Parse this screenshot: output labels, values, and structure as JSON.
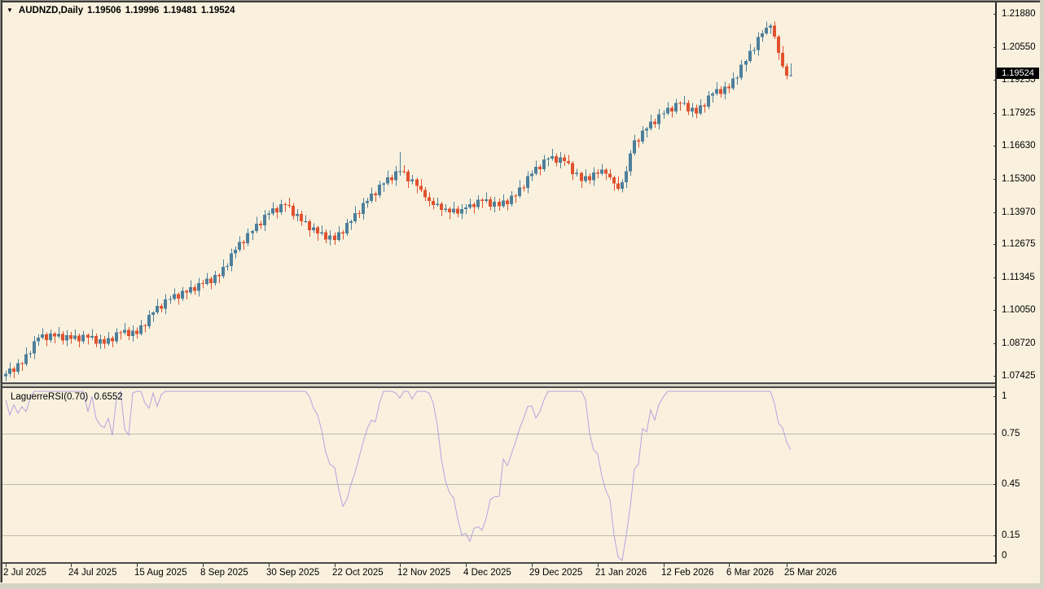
{
  "quote": {
    "symbol_period": "AUDNZD,Daily",
    "open": "1.19506",
    "high": "1.19996",
    "low": "1.19481",
    "close": "1.19524"
  },
  "indicator": {
    "label": "LaguerreRSI(0.70)",
    "value": "0.6552"
  },
  "price_axis": {
    "tick_labels": [
      "1.21880",
      "1.20550",
      "1.19255",
      "1.17925",
      "1.16630",
      "1.15300",
      "1.13970",
      "1.12675",
      "1.11345",
      "1.10050",
      "1.08720",
      "1.07425"
    ],
    "current": "1.19524"
  },
  "rsi_axis": {
    "tick_labels": [
      "1",
      "0.75",
      "0.45",
      "0.15",
      "0"
    ],
    "tick_values": [
      1,
      0.75,
      0.45,
      0.15,
      0
    ]
  },
  "time_axis": {
    "labels": [
      "2 Jul 2025",
      "24 Jul 2025",
      "15 Aug 2025",
      "8 Sep 2025",
      "30 Sep 2025",
      "22 Oct 2025",
      "12 Nov 2025",
      "4 Dec 2025",
      "29 Dec 2025",
      "21 Jan 2026",
      "12 Feb 2026",
      "6 Mar 2026",
      "25 Mar 2026"
    ],
    "indices": [
      0,
      16,
      32,
      48,
      64,
      80,
      96,
      112,
      128,
      144,
      160,
      176,
      190
    ]
  },
  "colors": {
    "background": "#f9f1de",
    "bull": "#4d7f9b",
    "bear": "#e1512d",
    "rsi_line": "#b7a1df",
    "grid": "#bdb9ae",
    "axis_text": "#000000",
    "badge_bg": "#000000",
    "badge_fg": "#ffffff"
  },
  "chart_data": [
    {
      "type": "candlestick",
      "title": "AUDNZD,Daily",
      "symbol": "AUDNZD",
      "timeframe": "Daily",
      "ylim": [
        1.07166,
        1.22432
      ],
      "grid": false,
      "y_tick_labels": [
        "1.21880",
        "1.20550",
        "1.19255",
        "1.17925",
        "1.16630",
        "1.15300",
        "1.13970",
        "1.12675",
        "1.11345",
        "1.10050",
        "1.08720",
        "1.07425"
      ],
      "x_labels": [
        "2 Jul 2025",
        "24 Jul 2025",
        "15 Aug 2025",
        "8 Sep 2025",
        "30 Sep 2025",
        "22 Oct 2025",
        "12 Nov 2025",
        "4 Dec 2025",
        "29 Dec 2025",
        "21 Jan 2026",
        "12 Feb 2026",
        "6 Mar 2026",
        "25 Mar 2026"
      ],
      "x_label_indices": [
        0,
        16,
        32,
        48,
        64,
        80,
        96,
        112,
        128,
        144,
        160,
        176,
        190
      ],
      "last_ohlc": [
        1.19506,
        1.19996,
        1.19481,
        1.19524
      ],
      "closes": [
        1.076,
        1.0782,
        1.0768,
        1.0802,
        1.08,
        1.0838,
        1.0841,
        1.0891,
        1.0905,
        1.0918,
        1.0896,
        1.0921,
        1.091,
        1.092,
        1.0893,
        1.0915,
        1.09,
        1.0913,
        1.0891,
        1.0916,
        1.0905,
        1.0911,
        1.0881,
        1.0898,
        1.088,
        1.0903,
        1.0891,
        1.0926,
        1.0925,
        1.0936,
        1.0911,
        1.0933,
        1.092,
        1.0953,
        1.0951,
        1.0996,
        1.1005,
        1.1031,
        1.1021,
        1.1058,
        1.106,
        1.1078,
        1.1061,
        1.1091,
        1.1085,
        1.1106,
        1.1091,
        1.1123,
        1.112,
        1.114,
        1.1123,
        1.1155,
        1.115,
        1.1188,
        1.1191,
        1.1241,
        1.1255,
        1.1286,
        1.1281,
        1.1323,
        1.133,
        1.136,
        1.1353,
        1.1395,
        1.14,
        1.1421,
        1.1406,
        1.1438,
        1.1435,
        1.1431,
        1.1391,
        1.1398,
        1.137,
        1.137,
        1.1333,
        1.1345,
        1.132,
        1.1326,
        1.1296,
        1.1313,
        1.1295,
        1.1326,
        1.1321,
        1.1363,
        1.137,
        1.1402,
        1.1398,
        1.1442,
        1.145,
        1.148,
        1.1473,
        1.1515,
        1.152,
        1.1545,
        1.1533,
        1.157,
        1.157,
        1.1567,
        1.1528,
        1.1537,
        1.151,
        1.1495,
        1.1465,
        1.145,
        1.1435,
        1.144,
        1.1415,
        1.142,
        1.1405,
        1.142,
        1.14,
        1.1418,
        1.1425,
        1.1437,
        1.1426,
        1.1456,
        1.145,
        1.1457,
        1.1428,
        1.1447,
        1.143,
        1.1452,
        1.1438,
        1.1472,
        1.147,
        1.1505,
        1.1503,
        1.155,
        1.156,
        1.1587,
        1.1578,
        1.1617,
        1.162,
        1.163,
        1.1603,
        1.1625,
        1.161,
        1.1602,
        1.1558,
        1.1562,
        1.153,
        1.155,
        1.1533,
        1.1565,
        1.156,
        1.1575,
        1.156,
        1.1545,
        1.152,
        1.15,
        1.1525,
        1.157,
        1.164,
        1.1692,
        1.1688,
        1.1732,
        1.174,
        1.1767,
        1.1758,
        1.1797,
        1.18,
        1.1822,
        1.1808,
        1.1842,
        1.184,
        1.1842,
        1.1808,
        1.1822,
        1.18,
        1.1832,
        1.1828,
        1.1872,
        1.188,
        1.1897,
        1.1878,
        1.1907,
        1.19,
        1.194,
        1.1943,
        1.1995,
        1.201,
        1.205,
        1.2053,
        1.2105,
        1.212,
        1.2143,
        1.215,
        1.2107,
        1.2042,
        1.1988,
        1.19506,
        1.19524
      ],
      "wick_high": [
        0.0013,
        0.0024,
        0.0008,
        0.0017,
        0.0006,
        0.0028,
        0.0011,
        0.002
      ],
      "wick_low": [
        0.0019,
        0.0007,
        0.0025,
        0.001,
        0.0028,
        0.0008,
        0.0015,
        0.0022
      ],
      "overrides": {
        "1": {
          "l": 1.0748
        },
        "96": {
          "h": 1.1645
        },
        "186": {
          "h": 1.2158
        },
        "191": {
          "o": 1.19506,
          "h": 1.19996,
          "l": 1.19481,
          "c": 1.19524
        }
      }
    },
    {
      "type": "line",
      "title": "LaguerreRSI(0.70)",
      "last_value": 0.6552,
      "ylim": [
        0,
        1
      ],
      "gridlines": [
        0.75,
        0.45,
        0.15
      ],
      "y_tick_labels": [
        "1",
        "0.75",
        "0.45",
        "0.15",
        "0"
      ],
      "values": [
        0.95,
        0.86,
        0.92,
        0.87,
        0.91,
        0.88,
        0.96,
        1.0,
        1.0,
        1.0,
        1.0,
        1.0,
        1.0,
        1.0,
        1.0,
        1.0,
        1.0,
        1.0,
        1.0,
        1.0,
        0.88,
        0.97,
        0.84,
        0.8,
        0.785,
        0.84,
        0.74,
        0.96,
        1.0,
        0.78,
        0.74,
        0.99,
        1.0,
        1.0,
        0.93,
        0.9,
        0.99,
        0.91,
        0.98,
        1.0,
        1.0,
        1.0,
        1.0,
        1.0,
        1.0,
        1.0,
        1.0,
        1.0,
        1.0,
        1.0,
        1.0,
        1.0,
        1.0,
        1.0,
        1.0,
        1.0,
        1.0,
        1.0,
        1.0,
        1.0,
        1.0,
        1.0,
        1.0,
        1.0,
        1.0,
        1.0,
        1.0,
        1.0,
        1.0,
        1.0,
        1.0,
        1.0,
        1.0,
        1.0,
        0.97,
        0.9,
        0.86,
        0.77,
        0.64,
        0.57,
        0.55,
        0.42,
        0.32,
        0.36,
        0.45,
        0.52,
        0.61,
        0.7,
        0.78,
        0.83,
        0.82,
        0.93,
        1.0,
        1.0,
        1.0,
        0.99,
        0.96,
        1.0,
        1.0,
        0.955,
        1.0,
        1.0,
        1.0,
        0.99,
        0.93,
        0.8,
        0.6,
        0.47,
        0.4,
        0.37,
        0.25,
        0.152,
        0.16,
        0.114,
        0.19,
        0.2,
        0.18,
        0.25,
        0.36,
        0.376,
        0.38,
        0.6,
        0.56,
        0.63,
        0.7,
        0.78,
        0.84,
        0.91,
        0.914,
        0.843,
        0.88,
        0.95,
        1.0,
        1.0,
        1.0,
        1.0,
        1.0,
        1.0,
        1.0,
        1.0,
        1.0,
        0.95,
        0.75,
        0.652,
        0.63,
        0.5,
        0.414,
        0.36,
        0.15,
        0.02,
        0.0,
        0.15,
        0.32,
        0.54,
        0.57,
        0.78,
        0.76,
        0.89,
        0.83,
        0.92,
        0.97,
        1.0,
        1.0,
        1.0,
        1.0,
        1.0,
        1.0,
        1.0,
        1.0,
        1.0,
        1.0,
        1.0,
        1.0,
        1.0,
        1.0,
        1.0,
        1.0,
        1.0,
        1.0,
        1.0,
        1.0,
        1.0,
        1.0,
        1.0,
        1.0,
        1.0,
        1.0,
        0.93,
        0.81,
        0.785,
        0.7,
        0.6552
      ]
    }
  ]
}
